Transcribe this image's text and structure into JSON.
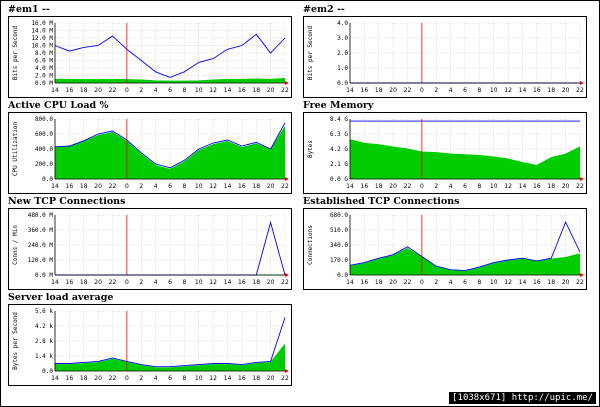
{
  "footer": "[1038x671] http://upic.me/",
  "x_ticks": [
    "14",
    "16",
    "18",
    "20",
    "22",
    "0",
    "2",
    "4",
    "6",
    "8",
    "10",
    "12",
    "14",
    "16",
    "18",
    "20",
    "22"
  ],
  "red_line_tick": "0",
  "chart_data": [
    {
      "title": "#em1 --  ",
      "type": "area",
      "ylabel": "Bits per Second",
      "y_ticks": [
        "0.0 M",
        "2.0 M",
        "4.0 M",
        "6.0 M",
        "8.0 M",
        "10.0 M",
        "12.0 M",
        "14.0 M",
        "16.0 M"
      ],
      "ylim": [
        0,
        16
      ],
      "series": [
        {
          "color": "#00cc00",
          "fill": true,
          "values": [
            1.0,
            1.0,
            0.9,
            0.9,
            1.0,
            0.9,
            0.8,
            0.6,
            0.5,
            0.5,
            0.6,
            0.8,
            1.0,
            1.0,
            1.1,
            1.0,
            1.2
          ]
        },
        {
          "color": "#0000ff",
          "fill": false,
          "values": [
            10,
            8.5,
            9.5,
            10,
            12.5,
            9,
            6,
            3,
            1.5,
            3,
            5.5,
            6.5,
            9,
            10,
            13,
            8,
            12
          ]
        }
      ]
    },
    {
      "title": "#em2 --",
      "type": "area",
      "ylabel": "Bits per Second",
      "y_ticks": [
        "0.0",
        "1.0",
        "2.0",
        "3.0",
        "4.0"
      ],
      "ylim": [
        0,
        4
      ],
      "series": [
        {
          "color": "#00cc00",
          "fill": true,
          "values": [
            0,
            0,
            0,
            0,
            0,
            0,
            0,
            0,
            0,
            0,
            0,
            0,
            0,
            0,
            0,
            0,
            0
          ]
        },
        {
          "color": "#0000ff",
          "fill": false,
          "values": [
            0,
            0,
            0,
            0,
            0,
            0,
            0,
            0,
            0,
            0,
            0,
            0,
            0,
            0,
            0,
            0,
            0
          ]
        }
      ]
    },
    {
      "title": "Active CPU Load %",
      "type": "area",
      "ylabel": "CPU Utilization",
      "y_ticks": [
        "0.0",
        "200.0",
        "400.0",
        "600.0",
        "800.0"
      ],
      "ylim": [
        0,
        800
      ],
      "series": [
        {
          "color": "#00cc00",
          "fill": true,
          "values": [
            420,
            430,
            500,
            580,
            620,
            500,
            330,
            180,
            130,
            230,
            380,
            460,
            500,
            420,
            470,
            390,
            700
          ]
        },
        {
          "color": "#0000ff",
          "fill": false,
          "values": [
            430,
            440,
            510,
            600,
            640,
            520,
            350,
            200,
            150,
            250,
            400,
            480,
            520,
            440,
            490,
            400,
            750
          ]
        }
      ]
    },
    {
      "title": "Free Memory",
      "type": "area",
      "ylabel": "Bytes",
      "y_ticks": [
        "0.0 G",
        "2.1 G",
        "4.2 G",
        "6.3 G",
        "8.4 G"
      ],
      "ylim": [
        0,
        8.4
      ],
      "series": [
        {
          "color": "#00cc00",
          "fill": true,
          "values": [
            5.5,
            5.0,
            4.8,
            4.5,
            4.2,
            3.8,
            3.7,
            3.5,
            3.4,
            3.3,
            3.1,
            2.8,
            2.3,
            1.9,
            3.0,
            3.5,
            4.5
          ]
        },
        {
          "color": "#0000ff",
          "fill": false,
          "values": [
            8.1,
            8.1,
            8.1,
            8.1,
            8.1,
            8.1,
            8.1,
            8.1,
            8.1,
            8.1,
            8.1,
            8.1,
            8.1,
            8.1,
            8.1,
            8.1,
            8.1
          ]
        }
      ]
    },
    {
      "title": "New TCP Connections",
      "type": "area",
      "ylabel": "Conns / Min",
      "y_ticks": [
        "0.0 M",
        "120.0 M",
        "240.0 M",
        "360.0 M",
        "480.0 M"
      ],
      "ylim": [
        0,
        480
      ],
      "series": [
        {
          "color": "#00cc00",
          "fill": true,
          "values": [
            0,
            0,
            0,
            0,
            0,
            0,
            0,
            0,
            0,
            0,
            0,
            0,
            0,
            0,
            0,
            0,
            0
          ]
        },
        {
          "color": "#0000ff",
          "fill": false,
          "values": [
            0,
            0,
            0,
            0,
            0,
            0,
            0,
            0,
            0,
            0,
            0,
            0,
            0,
            0,
            0,
            420,
            0
          ]
        }
      ]
    },
    {
      "title": "Established TCP Connections",
      "type": "area",
      "ylabel": "Connections",
      "y_ticks": [
        "0.0",
        "170.0",
        "340.0",
        "510.0",
        "680.0"
      ],
      "ylim": [
        0,
        680
      ],
      "series": [
        {
          "color": "#00cc00",
          "fill": true,
          "values": [
            100,
            130,
            180,
            220,
            300,
            200,
            90,
            50,
            40,
            80,
            130,
            160,
            180,
            150,
            180,
            200,
            240
          ]
        },
        {
          "color": "#0000ff",
          "fill": false,
          "values": [
            110,
            140,
            190,
            230,
            320,
            210,
            100,
            60,
            50,
            90,
            140,
            170,
            190,
            160,
            190,
            600,
            260
          ]
        }
      ]
    },
    {
      "title": "Server load average",
      "type": "area",
      "ylabel": "Bytes per Second",
      "y_ticks": [
        "0.0",
        "1.4 k",
        "2.8 k",
        "4.2 k",
        "5.6 k"
      ],
      "ylim": [
        0,
        5.6
      ],
      "series": [
        {
          "color": "#00cc00",
          "fill": true,
          "values": [
            0.6,
            0.6,
            0.7,
            0.8,
            1.1,
            0.8,
            0.5,
            0.3,
            0.3,
            0.4,
            0.5,
            0.6,
            0.6,
            0.5,
            0.7,
            0.8,
            2.5
          ]
        },
        {
          "color": "#0000ff",
          "fill": false,
          "values": [
            0.7,
            0.7,
            0.8,
            0.9,
            1.2,
            0.9,
            0.6,
            0.4,
            0.4,
            0.5,
            0.6,
            0.7,
            0.7,
            0.6,
            0.8,
            0.9,
            5.0
          ]
        }
      ]
    }
  ]
}
